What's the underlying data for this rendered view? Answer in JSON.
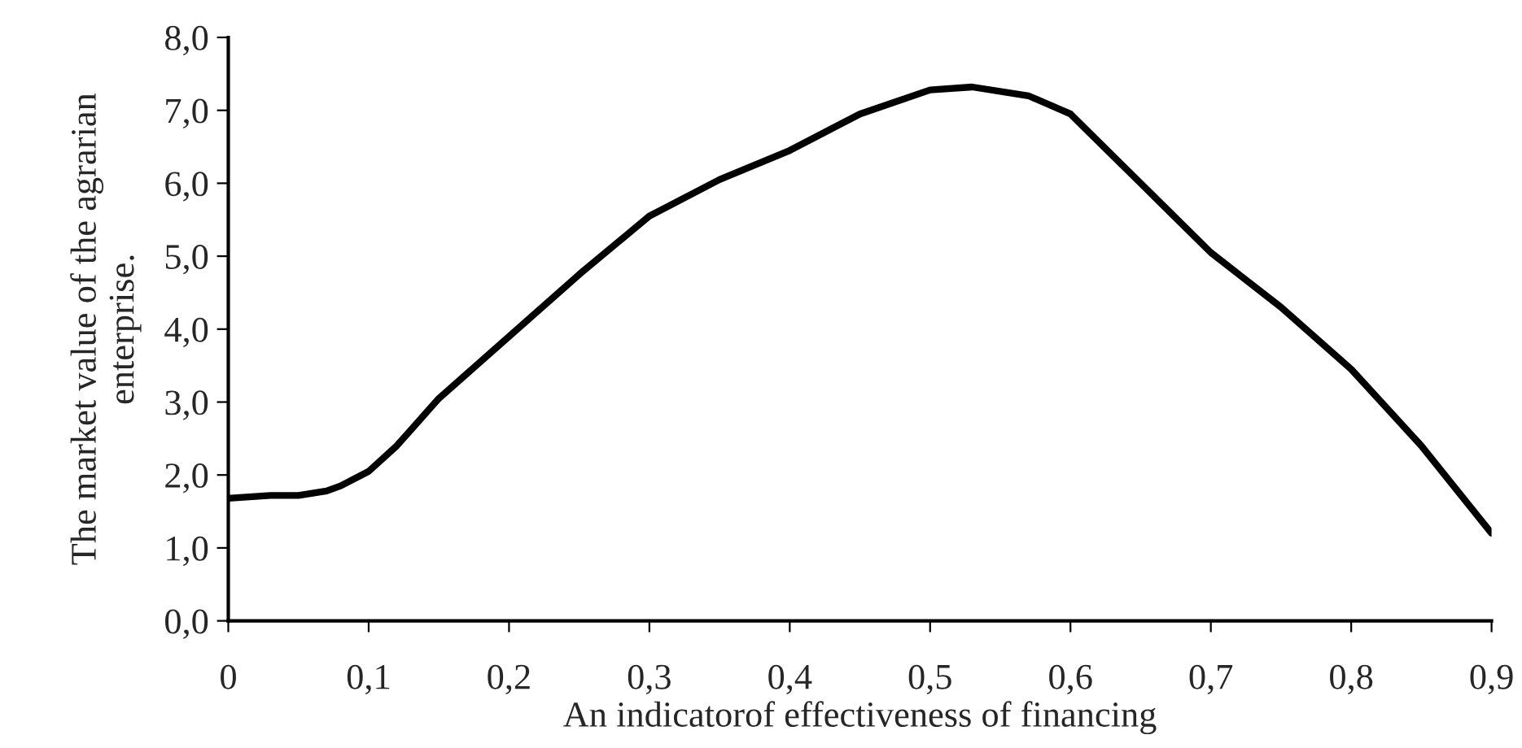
{
  "chart_data": {
    "type": "line",
    "xlabel": "An indicatorof effectiveness of financing",
    "ylabel": "The market value of the agrarian\nenterprise.",
    "series": [
      {
        "color": "#000000",
        "x": [
          0,
          0.03,
          0.05,
          0.07,
          0.08,
          0.1,
          0.12,
          0.15,
          0.2,
          0.25,
          0.3,
          0.35,
          0.4,
          0.45,
          0.5,
          0.53,
          0.57,
          0.6,
          0.65,
          0.7,
          0.75,
          0.8,
          0.85,
          0.9
        ],
        "values": [
          1.68,
          1.72,
          1.72,
          1.78,
          1.85,
          2.05,
          2.4,
          3.05,
          3.9,
          4.75,
          5.55,
          6.05,
          6.45,
          6.95,
          7.28,
          7.32,
          7.2,
          6.95,
          6.0,
          5.05,
          4.3,
          3.45,
          2.4,
          1.2
        ]
      }
    ],
    "xlim": [
      0,
      0.9
    ],
    "ylim": [
      0,
      8
    ],
    "xticks": [
      0,
      {
        "value": 0.1,
        "label": "0,1"
      },
      {
        "value": 0.2,
        "label": "0,2"
      },
      {
        "value": 0.3,
        "label": "0,3"
      },
      {
        "value": 0.4,
        "label": "0,4"
      },
      {
        "value": 0.5,
        "label": "0,5"
      },
      {
        "value": 0.6,
        "label": "0,6"
      },
      {
        "value": 0.7,
        "label": "0,7"
      },
      {
        "value": 0.8,
        "label": "0,8"
      },
      {
        "value": 0.9,
        "label": "0,9"
      }
    ],
    "yticks": [
      {
        "value": 0,
        "label": "0,0"
      },
      {
        "value": 1,
        "label": "1,0"
      },
      {
        "value": 2,
        "label": "2,0"
      },
      {
        "value": 3,
        "label": "3,0"
      },
      {
        "value": 4,
        "label": "4,0"
      },
      {
        "value": 5,
        "label": "5,0"
      },
      {
        "value": 6,
        "label": "6,0"
      },
      {
        "value": 7,
        "label": "7,0"
      },
      {
        "value": 8,
        "label": "8,0"
      }
    ],
    "grid": false,
    "legend": false,
    "line_style": "solid",
    "marker": "none"
  }
}
